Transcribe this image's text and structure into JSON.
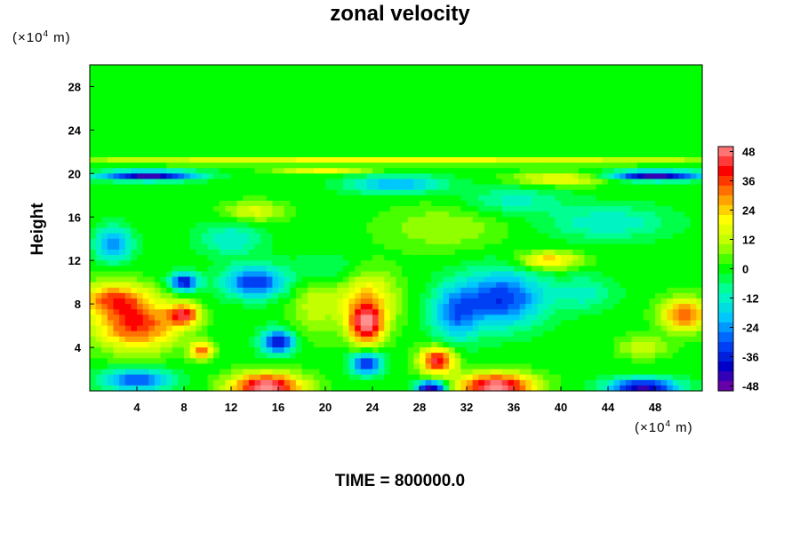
{
  "chart_data": {
    "type": "heatmap",
    "title": "zonal velocity",
    "xlabel": "",
    "ylabel": "Height",
    "x_unit": "(×10",
    "x_unit_exp": "4",
    "x_unit_tail": " m)",
    "y_unit": "(×10",
    "y_unit_exp": "4",
    "y_unit_tail": " m)",
    "footer": "TIME = 800000.0",
    "xlim": [
      0,
      52
    ],
    "ylim": [
      0,
      30
    ],
    "x_ticks": [
      4,
      8,
      12,
      16,
      20,
      24,
      28,
      32,
      36,
      40,
      44,
      48
    ],
    "y_ticks": [
      4,
      8,
      12,
      16,
      20,
      24,
      28
    ],
    "colorbar": {
      "min": -50,
      "max": 50,
      "ticks": [
        48,
        36,
        24,
        12,
        0,
        -12,
        -24,
        -36,
        -48
      ],
      "colors": [
        "#8000a0",
        "#0000c8",
        "#0050ff",
        "#00c8ff",
        "#00ffb4",
        "#00ff00",
        "#b4ff00",
        "#ffff00",
        "#ff8c00",
        "#ff0000",
        "#ff9090"
      ]
    },
    "field": {
      "background": 0,
      "features": [
        {
          "x": 4,
          "y": 6,
          "sx": 3.5,
          "sy": 2.2,
          "v": 38
        },
        {
          "x": 2,
          "y": 8.5,
          "sx": 3,
          "sy": 1.5,
          "v": 30
        },
        {
          "x": 8,
          "y": 7,
          "sx": 1.3,
          "sy": 1,
          "v": 38
        },
        {
          "x": 9.5,
          "y": 3.7,
          "sx": 1,
          "sy": 0.8,
          "v": 32
        },
        {
          "x": 8,
          "y": 10,
          "sx": 1.2,
          "sy": 0.8,
          "v": -40
        },
        {
          "x": 14,
          "y": 10,
          "sx": 2.6,
          "sy": 1.4,
          "v": -34
        },
        {
          "x": 16,
          "y": 4.5,
          "sx": 1.4,
          "sy": 1.1,
          "v": -38
        },
        {
          "x": 23.5,
          "y": 6,
          "sx": 1.5,
          "sy": 1.8,
          "v": 44
        },
        {
          "x": 23.5,
          "y": 8.5,
          "sx": 2.5,
          "sy": 2.5,
          "v": 24
        },
        {
          "x": 19,
          "y": 8,
          "sx": 2,
          "sy": 3,
          "v": 12
        },
        {
          "x": 23.5,
          "y": 2.5,
          "sx": 1.3,
          "sy": 1,
          "v": -38
        },
        {
          "x": 15,
          "y": 0.4,
          "sx": 3,
          "sy": 1.2,
          "v": 52
        },
        {
          "x": 29.5,
          "y": 2.8,
          "sx": 1.5,
          "sy": 1.2,
          "v": 44
        },
        {
          "x": 29,
          "y": 0.3,
          "sx": 1.2,
          "sy": 0.6,
          "v": -48
        },
        {
          "x": 34.5,
          "y": 0.4,
          "sx": 3.2,
          "sy": 1.2,
          "v": 52
        },
        {
          "x": 35,
          "y": 8.5,
          "sx": 3.5,
          "sy": 2.5,
          "v": -34
        },
        {
          "x": 31,
          "y": 7,
          "sx": 2,
          "sy": 2.5,
          "v": -24
        },
        {
          "x": 39,
          "y": 12,
          "sx": 2.5,
          "sy": 0.8,
          "v": 26
        },
        {
          "x": 50.5,
          "y": 7,
          "sx": 2,
          "sy": 1.5,
          "v": 34
        },
        {
          "x": 47,
          "y": 4,
          "sx": 2,
          "sy": 1,
          "v": 14
        },
        {
          "x": 47,
          "y": 0.3,
          "sx": 3,
          "sy": 0.8,
          "v": -44
        },
        {
          "x": 4,
          "y": 1,
          "sx": 3,
          "sy": 1,
          "v": -30
        },
        {
          "x": 2,
          "y": 13.5,
          "sx": 1.5,
          "sy": 1.5,
          "v": -26
        },
        {
          "x": 12,
          "y": 14,
          "sx": 2.5,
          "sy": 1.5,
          "v": -14
        },
        {
          "x": 14,
          "y": 16.5,
          "sx": 2.5,
          "sy": 0.9,
          "v": 16
        },
        {
          "x": 30,
          "y": 15,
          "sx": 5,
          "sy": 2,
          "v": 10
        },
        {
          "x": 44,
          "y": 15.5,
          "sx": 5,
          "sy": 1.5,
          "v": -14
        },
        {
          "x": 36,
          "y": 17.5,
          "sx": 4,
          "sy": 1.2,
          "v": -12
        },
        {
          "x": 26,
          "y": 19,
          "sx": 4,
          "sy": 0.8,
          "v": -24
        },
        {
          "x": 5,
          "y": 19.8,
          "sx": 4,
          "sy": 0.45,
          "v": -46
        },
        {
          "x": 20,
          "y": 20.3,
          "sx": 4,
          "sy": 0.3,
          "v": 20
        },
        {
          "x": 48,
          "y": 19.8,
          "sx": 4,
          "sy": 0.45,
          "v": -46
        },
        {
          "x": 26,
          "y": 21.2,
          "sx": 30,
          "sy": 0.35,
          "v": 20
        },
        {
          "x": 40,
          "y": 19.5,
          "sx": 4,
          "sy": 0.6,
          "v": 20
        },
        {
          "x": 20,
          "y": 11,
          "sx": 3,
          "sy": 1.5,
          "v": -10
        },
        {
          "x": 42,
          "y": 9,
          "sx": 2.5,
          "sy": 1.5,
          "v": -12
        }
      ]
    }
  }
}
